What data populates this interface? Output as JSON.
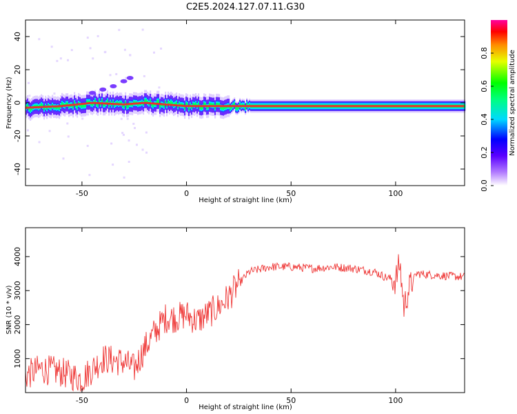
{
  "title": "C2E5.2024.127.07.11.G30",
  "colors": {
    "spec_line": "#e8312f",
    "snr_line": "#ee3433"
  },
  "colorbar": {
    "label": "Normalized spectral amplitude",
    "ticks": [
      0.0,
      0.2,
      0.4,
      0.6,
      0.8
    ],
    "tick_labels": [
      "0.0",
      "0.2",
      "0.4",
      "0.6",
      "0.8"
    ],
    "range": [
      0.0,
      1.0
    ],
    "colormap": [
      "#ffffff",
      "#7a00ff",
      "#0000ff",
      "#00ffff",
      "#00ff00",
      "#ffff00",
      "#ff0000",
      "#ff00aa"
    ]
  },
  "chart_data": [
    {
      "type": "heatmap",
      "title": "C2E5.2024.127.07.11.G30",
      "xlabel": "Height of straight line (km)",
      "ylabel": "Frequency (Hz)",
      "xlim": [
        -77,
        133
      ],
      "ylim": [
        -50,
        50
      ],
      "xticks": [
        -50,
        0,
        50,
        100
      ],
      "xtick_labels": [
        "-50",
        "0",
        "50",
        "100"
      ],
      "yticks": [
        -40,
        -20,
        0,
        20,
        40
      ],
      "ytick_labels": [
        "-40",
        "-20",
        "0",
        "20",
        "40"
      ],
      "ridge": {
        "name": "dominant frequency",
        "x": [
          -77,
          -60,
          -45,
          -30,
          -20,
          -10,
          0,
          20,
          40,
          60,
          80,
          100,
          120,
          133
        ],
        "y": [
          -3,
          -2,
          0,
          -1,
          0,
          -1,
          -2,
          -2,
          -2,
          -2,
          -2,
          -2,
          -2,
          -2
        ]
      },
      "scatter_band": {
        "x": [
          -45,
          -40,
          -35,
          -30,
          -27
        ],
        "y": [
          6,
          8,
          10,
          13,
          15
        ]
      }
    },
    {
      "type": "line",
      "xlabel": "Height of straight line (km)",
      "ylabel": "SNR (10 * v/v)",
      "xlim": [
        -77,
        133
      ],
      "ylim": [
        0,
        4850
      ],
      "xticks": [
        -50,
        0,
        50,
        100
      ],
      "xtick_labels": [
        "-50",
        "0",
        "50",
        "100"
      ],
      "yticks": [
        1000,
        2000,
        3000,
        4000
      ],
      "ytick_labels": [
        "1000",
        "2000",
        "3000",
        "4000"
      ],
      "series": [
        {
          "x": [
            -77,
            -70,
            -60,
            -50,
            -40,
            -30,
            -25,
            -20,
            -15,
            -10,
            -5,
            0,
            5,
            10,
            15,
            20,
            25,
            30,
            40,
            50,
            60,
            70,
            80,
            90,
            95,
            100,
            102,
            104,
            106,
            110,
            120,
            133
          ],
          "y": [
            500,
            700,
            600,
            400,
            1000,
            900,
            700,
            1300,
            1800,
            2200,
            2200,
            2300,
            2100,
            2300,
            2500,
            2800,
            3200,
            3550,
            3700,
            3700,
            3650,
            3700,
            3650,
            3550,
            3400,
            3300,
            3800,
            2500,
            3000,
            3500,
            3450,
            3400
          ]
        }
      ]
    }
  ]
}
